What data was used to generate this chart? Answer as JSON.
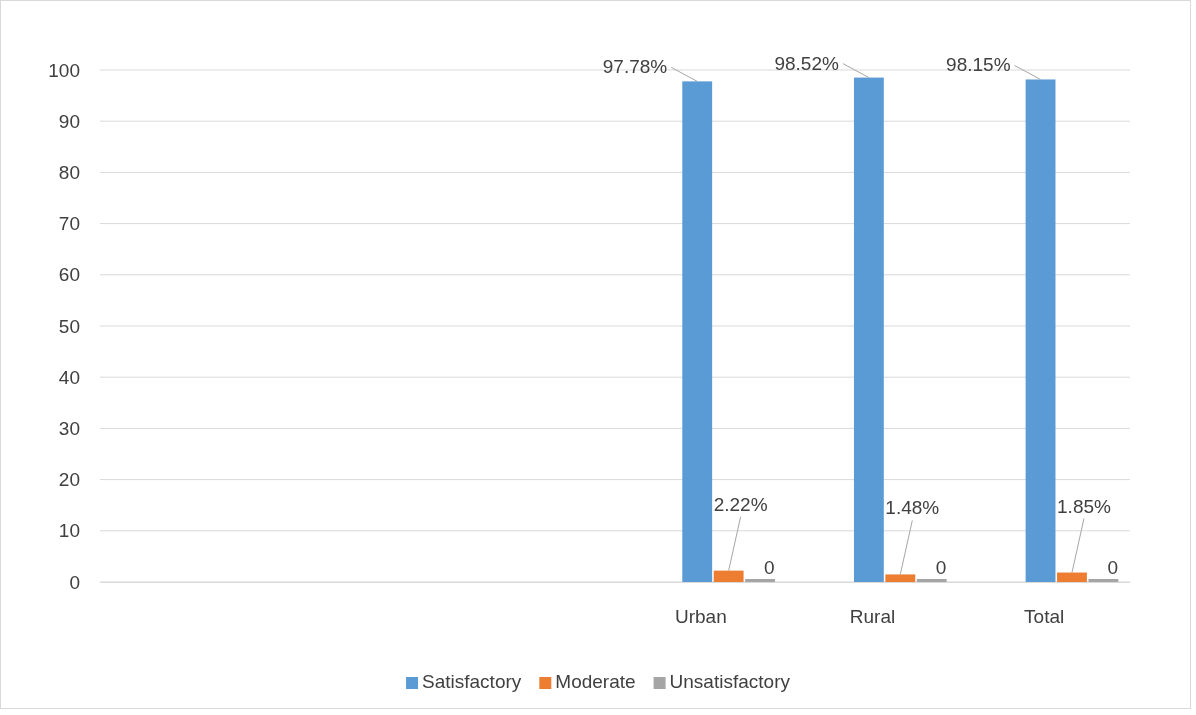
{
  "chart_data": {
    "type": "bar",
    "categories": [
      null,
      null,
      null,
      "Urban",
      "Rural",
      "Total"
    ],
    "series": [
      {
        "name": "Satisfactory",
        "color": "#5b9bd5",
        "values": [
          null,
          null,
          null,
          97.78,
          98.52,
          98.15
        ],
        "value_labels": [
          null,
          null,
          null,
          "97.78%",
          "98.52%",
          "98.15%"
        ]
      },
      {
        "name": "Moderate",
        "color": "#ed7d31",
        "values": [
          null,
          null,
          null,
          2.22,
          1.48,
          1.85
        ],
        "value_labels": [
          null,
          null,
          null,
          "2.22%",
          "1.48%",
          "1.85%"
        ]
      },
      {
        "name": "Unsatisfactory",
        "color": "#a5a5a5",
        "values": [
          null,
          null,
          null,
          0,
          0,
          0
        ],
        "value_labels": [
          null,
          null,
          null,
          "0",
          "0",
          "0"
        ]
      }
    ],
    "ylim": [
      0,
      100
    ],
    "yticks": [
      0,
      10,
      20,
      30,
      40,
      50,
      60,
      70,
      80,
      90,
      100
    ],
    "grid": "y",
    "legend": "bottom"
  }
}
